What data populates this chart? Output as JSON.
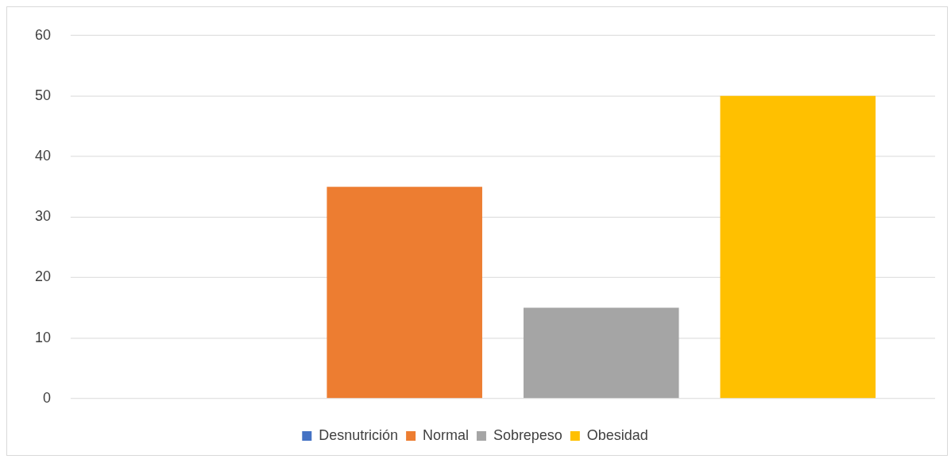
{
  "chart_data": {
    "type": "bar",
    "categories": [
      null
    ],
    "series": [
      {
        "name": "Desnutrición",
        "color": "#4472c4",
        "values": [
          0
        ]
      },
      {
        "name": "Normal",
        "color": "#ed7d31",
        "values": [
          35
        ]
      },
      {
        "name": "Sobrepeso",
        "color": "#a5a5a5",
        "values": [
          15
        ]
      },
      {
        "name": "Obesidad",
        "color": "#ffc000",
        "values": [
          50
        ]
      }
    ],
    "ylim": [
      0,
      60
    ],
    "yticks": [
      0,
      10,
      20,
      30,
      40,
      50,
      60
    ],
    "grid": "y",
    "legend": "bottom"
  }
}
